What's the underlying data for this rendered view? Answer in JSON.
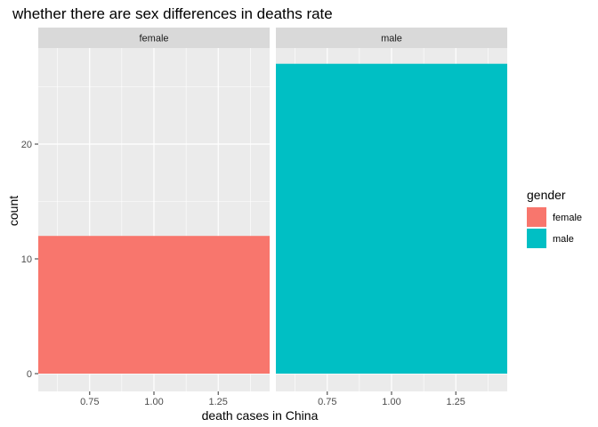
{
  "chart_data": {
    "type": "bar",
    "title": "whether there are sex differences in deaths rate",
    "xlabel": "death cases in China",
    "ylabel": "count",
    "facets": [
      "female",
      "male"
    ],
    "x": [
      1.0
    ],
    "x_ticks": [
      0.75,
      1.0,
      1.25
    ],
    "x_tick_labels": [
      "0.75",
      "1.00",
      "1.25"
    ],
    "xlim": [
      0.55,
      1.45
    ],
    "y_ticks": [
      0,
      10,
      20
    ],
    "y_tick_labels": [
      "0",
      "10",
      "20"
    ],
    "ylim": [
      0,
      27
    ],
    "grid": true,
    "series": [
      {
        "name": "female",
        "facet": "female",
        "x": 1.0,
        "value": 12,
        "color": "#F8766D"
      },
      {
        "name": "male",
        "facet": "male",
        "x": 1.0,
        "value": 27,
        "color": "#00BFC4"
      }
    ],
    "legend": {
      "title": "gender",
      "position": "right",
      "entries": [
        {
          "label": "female",
          "color": "#F8766D"
        },
        {
          "label": "male",
          "color": "#00BFC4"
        }
      ]
    },
    "colors": {
      "panel_background": "#EBEBEB",
      "strip_background": "#D9D9D9",
      "grid_major": "#FFFFFF"
    }
  }
}
